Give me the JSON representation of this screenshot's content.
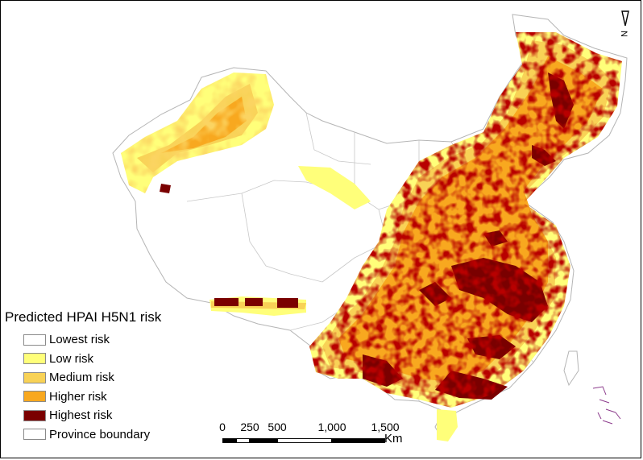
{
  "legend": {
    "title": "Predicted HPAI H5N1 risk",
    "items": [
      {
        "label": "Lowest risk",
        "color": "#ffffff"
      },
      {
        "label": "Low risk",
        "color": "#ffff7a"
      },
      {
        "label": "Medium risk",
        "color": "#f8d256"
      },
      {
        "label": "Higher risk",
        "color": "#f8a81f"
      },
      {
        "label": "Highest risk",
        "color": "#7a0000"
      },
      {
        "label": "Province boundary",
        "color": "#ffffff"
      }
    ]
  },
  "north_arrow": {
    "label": "N"
  },
  "scale_bar": {
    "ticks": [
      "0",
      "250",
      "500",
      "1,000",
      "1,500"
    ],
    "unit": "Km"
  },
  "colors": {
    "boundary": "#c8c8c8",
    "low": "#ffff7a",
    "medium": "#f8d256",
    "higher": "#f8a81f",
    "highest": "#7a0000",
    "islands": "#8b3a8b"
  }
}
